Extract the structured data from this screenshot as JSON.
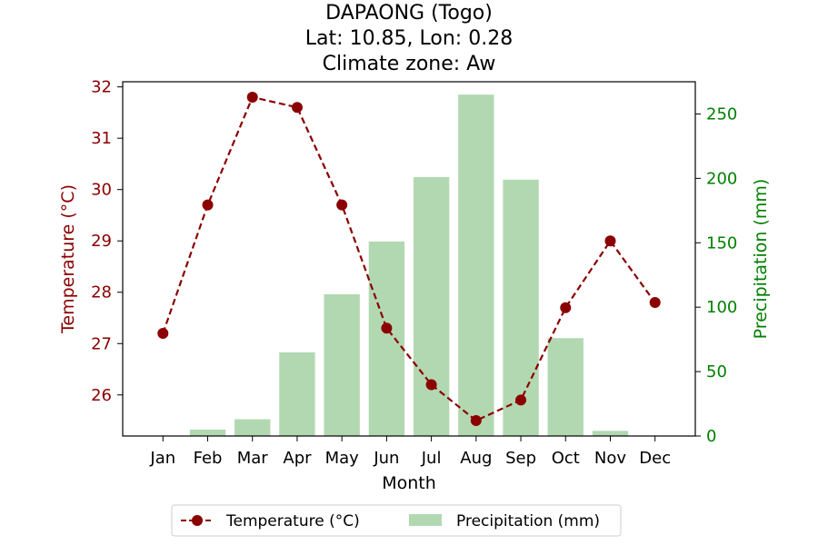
{
  "chart_data": {
    "type": "bar+line",
    "title_lines": [
      "DAPAONG (Togo)",
      "Lat: 10.85, Lon: 0.28",
      "Climate zone: Aw"
    ],
    "xlabel": "Month",
    "ylabel_left": "Temperature (°C)",
    "ylabel_right": "Precipitation (mm)",
    "categories": [
      "Jan",
      "Feb",
      "Mar",
      "Apr",
      "May",
      "Jun",
      "Jul",
      "Aug",
      "Sep",
      "Oct",
      "Nov",
      "Dec"
    ],
    "temp_ylim": [
      25.2,
      32.1
    ],
    "temp_ticks": [
      26,
      27,
      28,
      29,
      30,
      31,
      32
    ],
    "precip_ylim": [
      0,
      275
    ],
    "precip_ticks": [
      0,
      50,
      100,
      150,
      200,
      250
    ],
    "grid": false,
    "legend_placement": "bottom-center",
    "series": [
      {
        "name": "Temperature (°C)",
        "kind": "line",
        "axis": "left",
        "color": "#8b0000",
        "values": [
          27.2,
          29.7,
          31.8,
          31.6,
          29.7,
          27.3,
          26.2,
          25.5,
          25.9,
          27.7,
          29.0,
          27.8
        ]
      },
      {
        "name": "Precipitation (mm)",
        "kind": "bar",
        "axis": "right",
        "color": "#b2d8b2",
        "values": [
          0,
          5,
          13,
          65,
          110,
          151,
          201,
          265,
          199,
          76,
          4,
          0
        ]
      }
    ],
    "colors": {
      "temp_axis": "#8b0000",
      "precip_axis": "#008000",
      "text": "#000000"
    }
  }
}
